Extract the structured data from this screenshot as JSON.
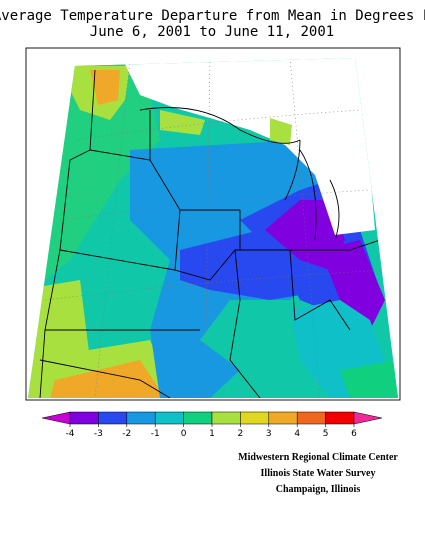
{
  "header": {
    "title": "Average Temperature Departure from Mean in Degrees F",
    "subtitle": "June 6, 2001 to June 11, 2001"
  },
  "legend": {
    "ticks": [
      -4,
      -3,
      -2,
      -1,
      0,
      1,
      2,
      3,
      4,
      5,
      6
    ],
    "colors": [
      "#c800d8",
      "#8000e0",
      "#2848f0",
      "#1898e0",
      "#10c0c8",
      "#10d080",
      "#a8e040",
      "#e0d820",
      "#f0a828",
      "#f06820",
      "#f00000",
      "#f02898"
    ]
  },
  "credits": [
    "Midwestern Regional Climate Center",
    "Illinois State Water Survey",
    "Champaign, Illinois"
  ]
}
